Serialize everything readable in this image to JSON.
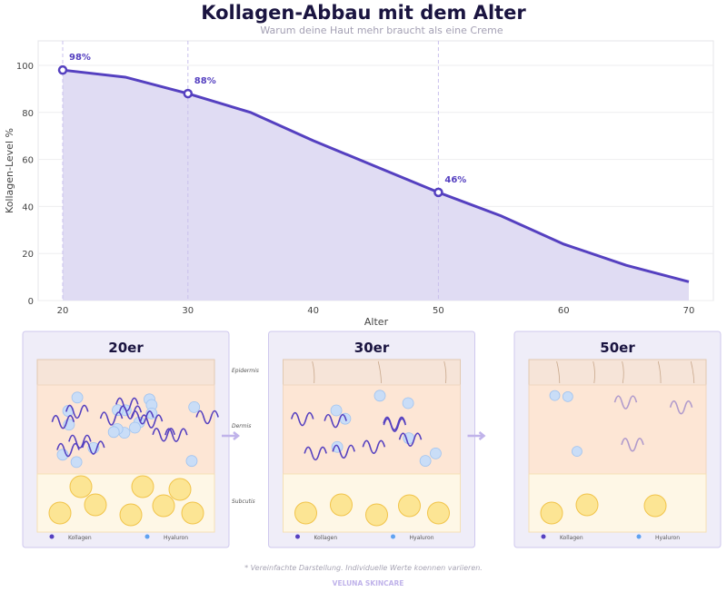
{
  "chart_data": {
    "type": "area",
    "title": "Kollagen-Abbau mit dem Alter",
    "subtitle": "Warum deine Haut mehr braucht als eine Creme",
    "xlabel": "Alter",
    "ylabel": "Kollagen-Level %",
    "xlim": [
      18,
      72
    ],
    "ylim": [
      0,
      110
    ],
    "xticks": [
      20,
      30,
      40,
      50,
      60,
      70
    ],
    "yticks": [
      0,
      20,
      40,
      60,
      80,
      100
    ],
    "grid": true,
    "x": [
      20,
      25,
      30,
      35,
      40,
      45,
      50,
      55,
      60,
      65,
      70
    ],
    "values": [
      98,
      95,
      88,
      80,
      68,
      57,
      46,
      36,
      24,
      15,
      8
    ],
    "annotations": [
      {
        "x": 20,
        "y": 98,
        "label": "98%"
      },
      {
        "x": 30,
        "y": 88,
        "label": "88%"
      },
      {
        "x": 50,
        "y": 46,
        "label": "46%"
      }
    ],
    "colors": {
      "line": "#5540c0",
      "fill": "#e0dcf3",
      "marker_fill": "#ffffff"
    }
  },
  "panels": [
    {
      "title": "20er",
      "collagen": "high",
      "hyaluron": "high"
    },
    {
      "title": "30er",
      "collagen": "medium",
      "hyaluron": "medium"
    },
    {
      "title": "50er",
      "collagen": "low",
      "hyaluron": "low"
    }
  ],
  "layers": {
    "epidermis": "Epidermis",
    "dermis": "Dermis",
    "subcutis": "Subcutis"
  },
  "legend": {
    "collagen": "Kollagen",
    "hyaluron": "Hyaluron"
  },
  "footnote": "* Vereinfachte Darstellung. Individuelle Werte koennen variieren.",
  "brand": "VELUNA SKINCARE"
}
